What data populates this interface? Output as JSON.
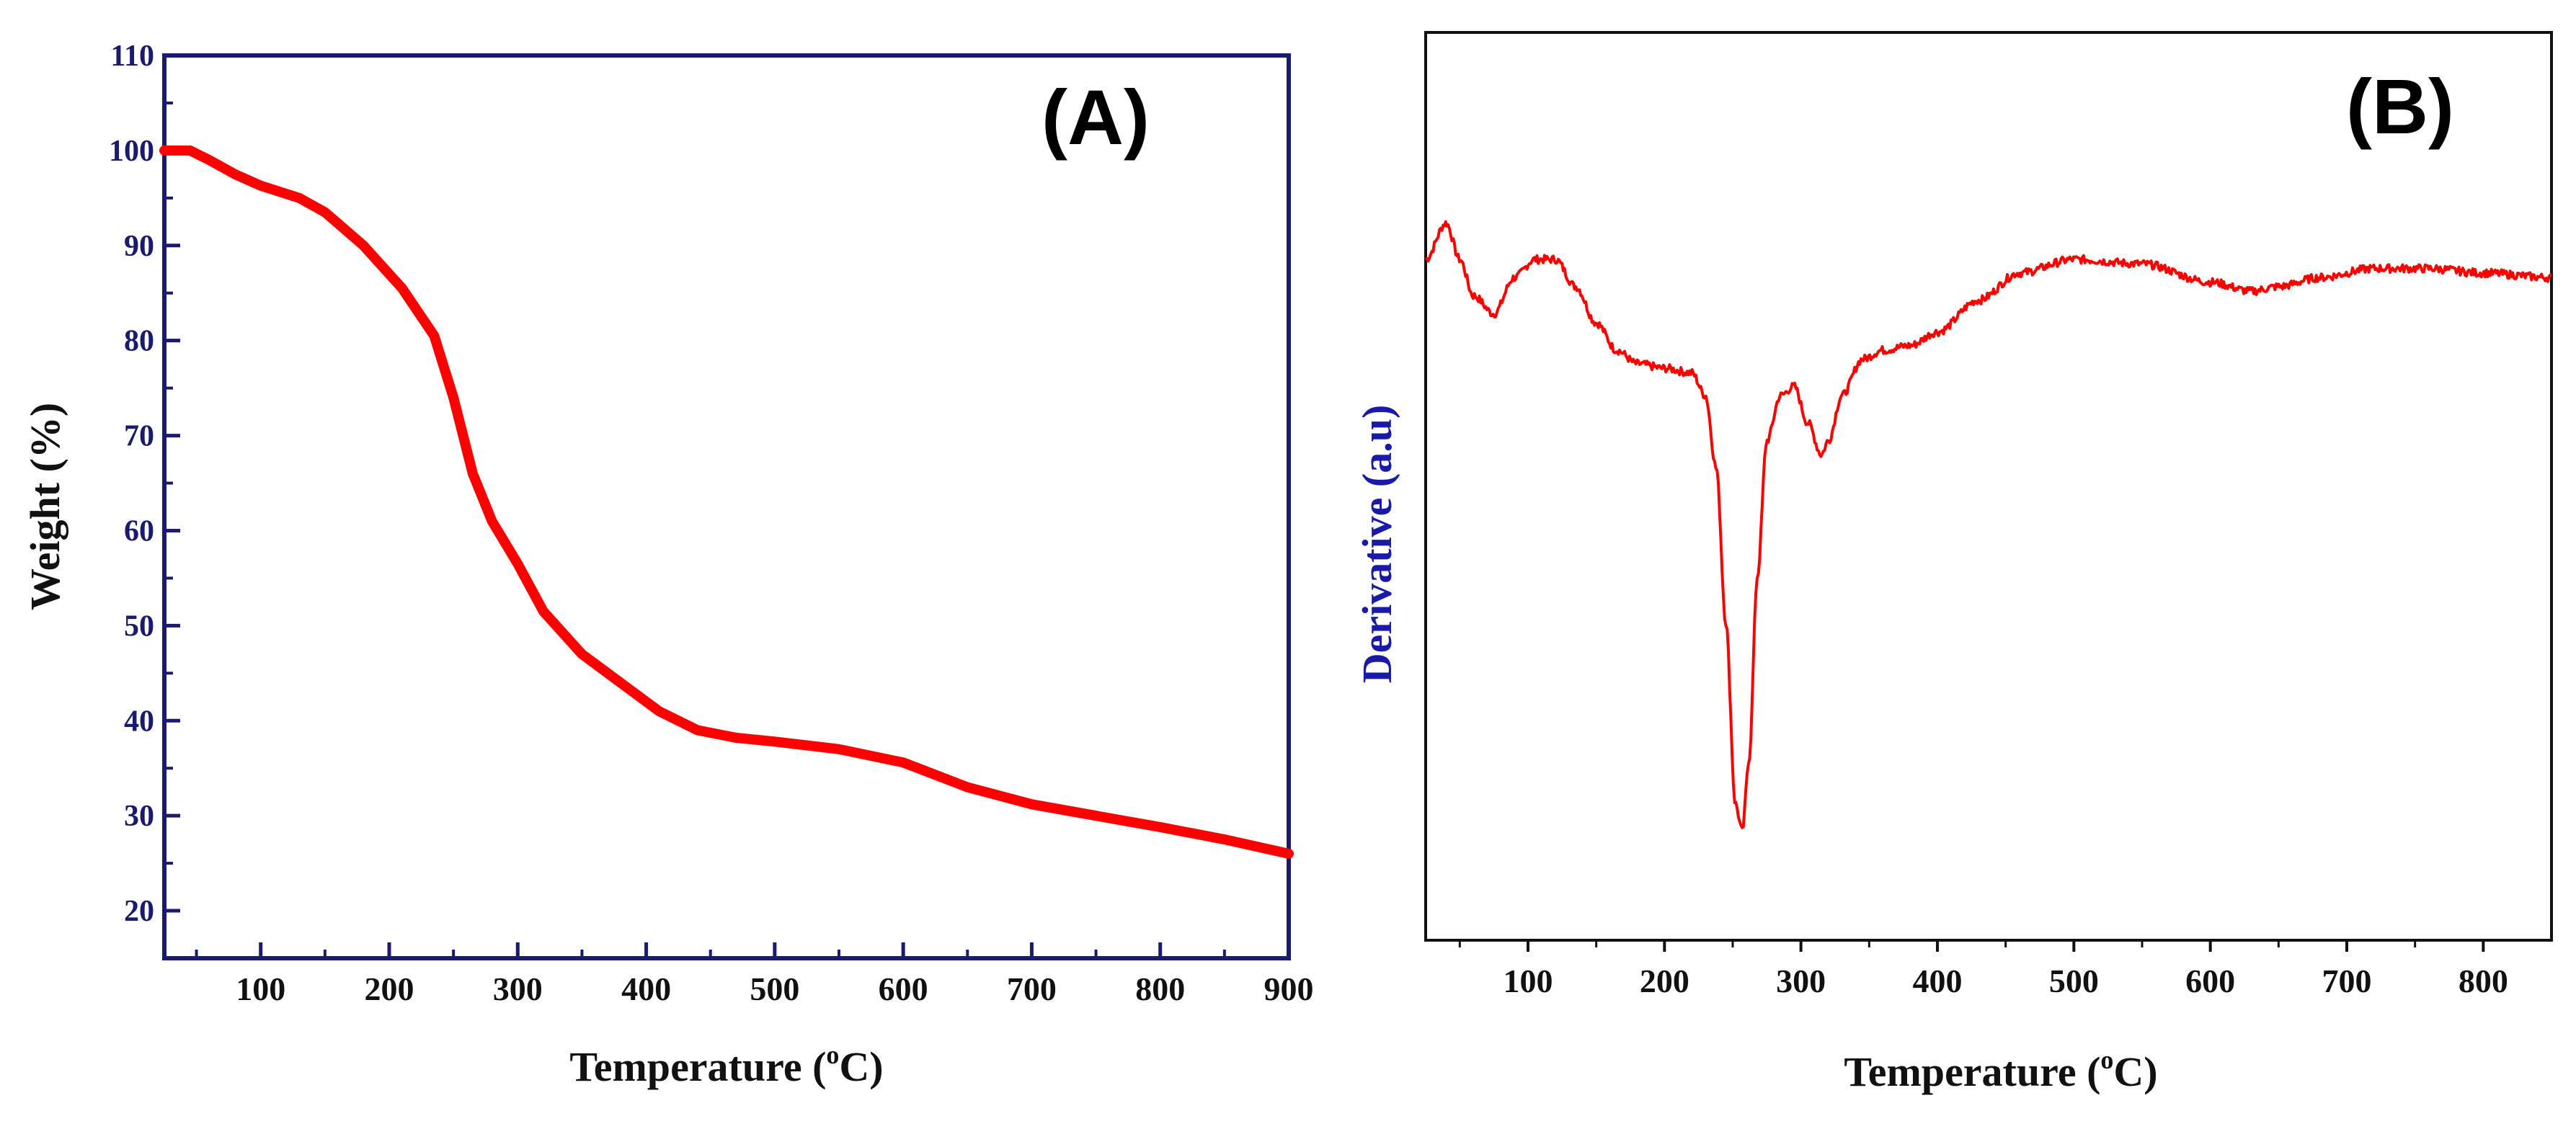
{
  "chart_data": [
    {
      "type": "line",
      "panel_label": "(A)",
      "xlabel": "Temperature (",
      "xlabel_sup": "o",
      "xlabel_end": "C)",
      "ylabel": "Weight (%)",
      "xlim": [
        25,
        900
      ],
      "ylim": [
        15,
        110
      ],
      "x_ticks": [
        100,
        200,
        300,
        400,
        500,
        600,
        700,
        800,
        900
      ],
      "y_ticks": [
        20,
        30,
        40,
        50,
        60,
        70,
        80,
        90,
        100,
        110
      ],
      "colors": {
        "axis": "#1a1a6e",
        "line": "#ff0000"
      },
      "series": [
        {
          "name": "Weight",
          "x": [
            25,
            45,
            60,
            80,
            100,
            130,
            150,
            180,
            210,
            235,
            250,
            265,
            280,
            300,
            320,
            350,
            380,
            410,
            440,
            470,
            500,
            550,
            600,
            650,
            700,
            750,
            800,
            850,
            900
          ],
          "y": [
            100,
            100,
            99,
            97.5,
            96.3,
            95,
            93.5,
            90,
            85.5,
            80.5,
            74,
            66,
            61,
            56.5,
            51.5,
            47,
            44,
            41,
            39,
            38.2,
            37.8,
            37,
            35.6,
            33,
            31.2,
            30,
            28.8,
            27.5,
            26
          ]
        }
      ]
    },
    {
      "type": "line",
      "panel_label": "(B)",
      "xlabel": "Temperature (",
      "xlabel_sup": "o",
      "xlabel_end": "C)",
      "ylabel": "Derivative (a.u)",
      "xlim": [
        25,
        850
      ],
      "ylim": [
        0,
        100
      ],
      "x_ticks": [
        100,
        200,
        300,
        400,
        500,
        600,
        700,
        800
      ],
      "y_ticks": [],
      "colors": {
        "axis": "#111111",
        "ylabel": "#1a1aa8",
        "line": "#ff0000"
      },
      "series": [
        {
          "name": "Derivative",
          "x": [
            25,
            40,
            50,
            60,
            75,
            90,
            105,
            120,
            135,
            150,
            165,
            180,
            200,
            220,
            230,
            238,
            245,
            252,
            257,
            262,
            268,
            275,
            285,
            295,
            305,
            315,
            320,
            330,
            345,
            360,
            380,
            400,
            430,
            460,
            500,
            550,
            600,
            630,
            650,
            680,
            720,
            760,
            800,
            850
          ],
          "y": [
            75,
            79,
            75,
            71,
            69,
            73,
            75,
            75,
            72,
            68,
            65,
            63.5,
            63,
            62.5,
            60,
            52,
            35,
            15,
            12,
            20,
            40,
            55,
            60,
            61,
            57,
            53.5,
            55,
            60,
            64,
            65,
            65.5,
            67,
            70.5,
            73.5,
            75,
            74.5,
            72.5,
            71.5,
            72,
            73,
            74,
            74,
            73.5,
            73
          ]
        }
      ]
    }
  ]
}
